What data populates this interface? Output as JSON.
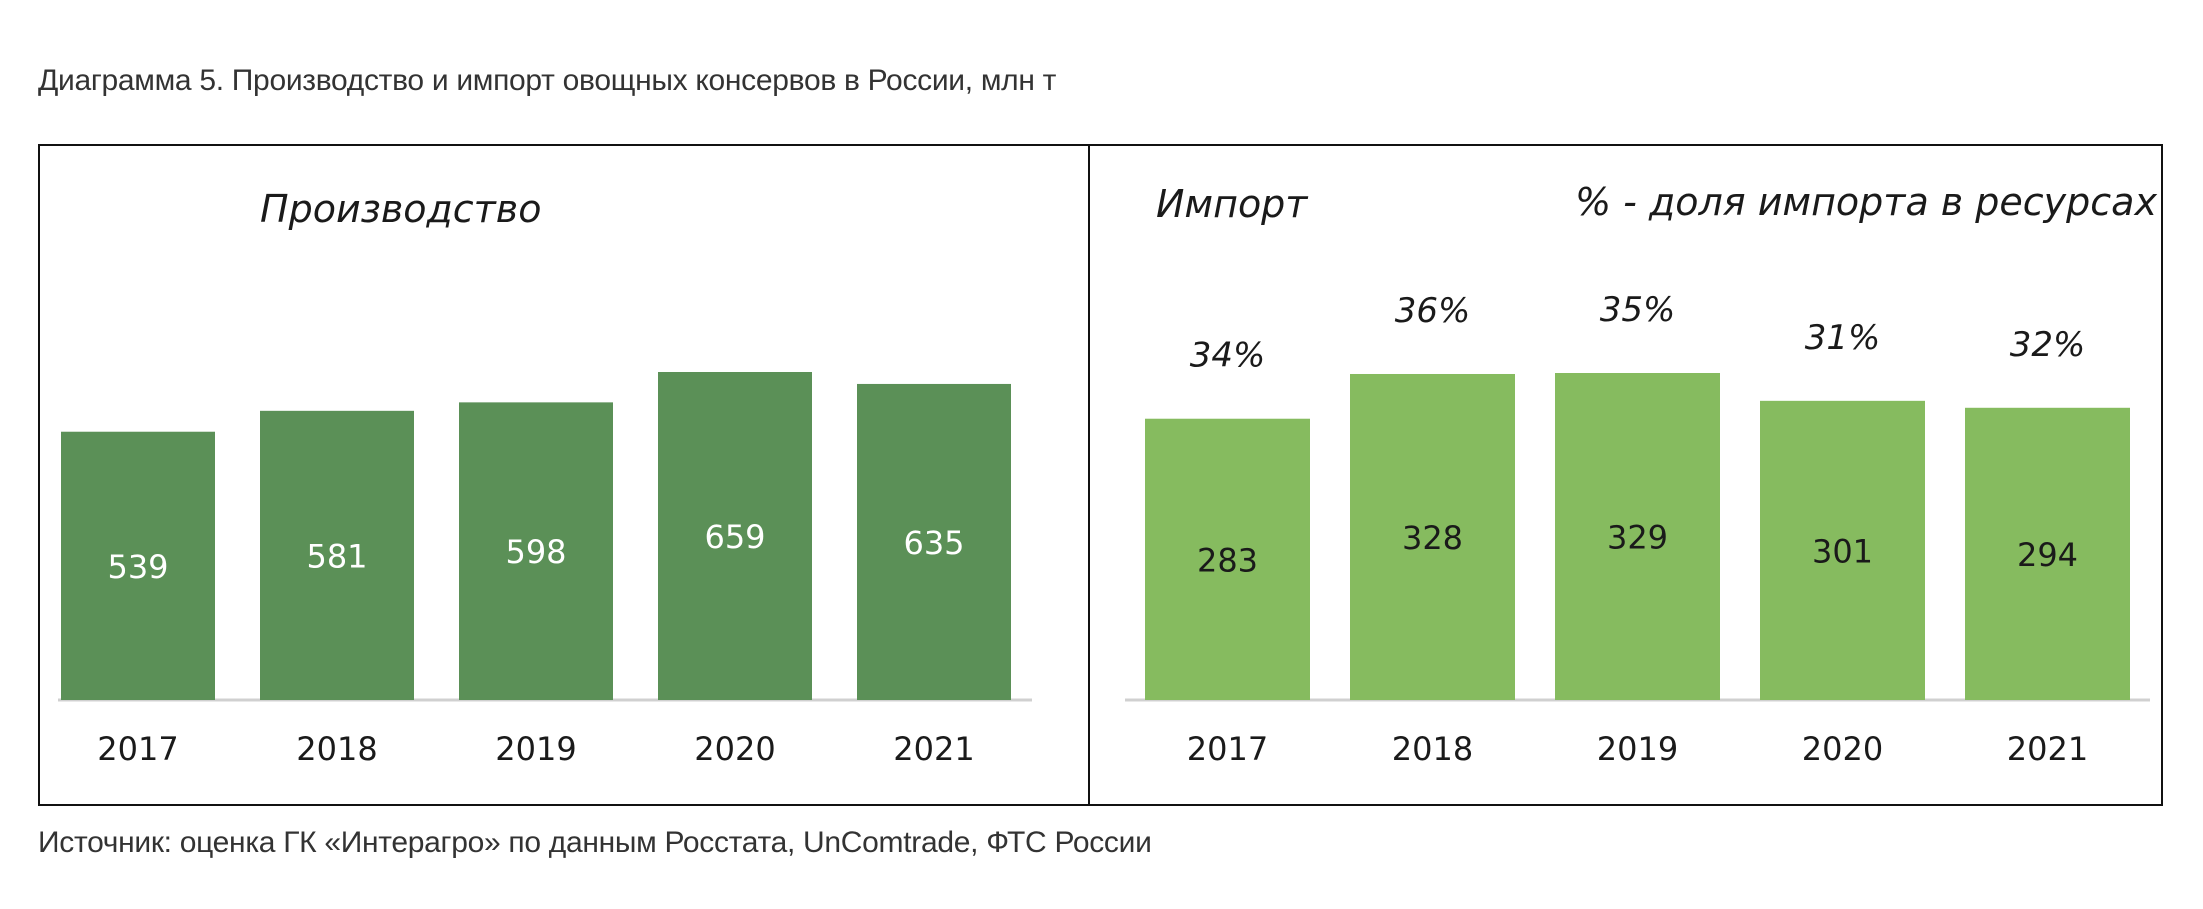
{
  "caption": "Диаграмма 5. Производство и импорт овощных консервов в России, млн т",
  "source": "Источник: оценка ГК «Интерагро» по данным Росстата, UnComtrade, ФТС России",
  "colors": {
    "production": "#5b9057",
    "import": "#86bb5f",
    "axis": "#d0d0d0"
  },
  "chart_data": [
    {
      "type": "bar",
      "title": "Производство",
      "categories": [
        "2017",
        "2018",
        "2019",
        "2020",
        "2021"
      ],
      "series": [
        {
          "values": [
            539,
            581,
            598,
            659,
            635
          ]
        }
      ],
      "data_label_color": "#ffffff"
    },
    {
      "type": "bar",
      "title": "Импорт",
      "annotation": "%  - доля импорта в ресурсах",
      "categories": [
        "2017",
        "2018",
        "2019",
        "2020",
        "2021"
      ],
      "series": [
        {
          "values": [
            283,
            328,
            329,
            301,
            294
          ]
        }
      ],
      "share_labels": [
        "34%",
        "36%",
        "35%",
        "31%",
        "32%"
      ],
      "data_label_color": "#1a1a1a"
    }
  ]
}
